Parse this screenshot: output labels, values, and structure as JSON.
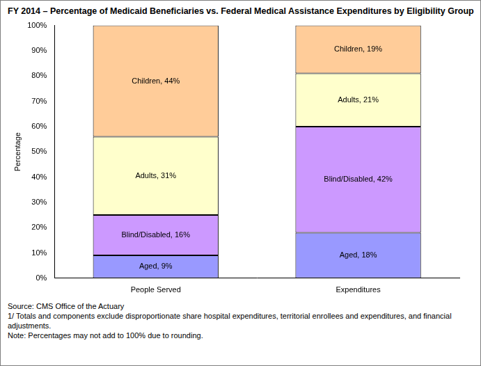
{
  "chart_data": {
    "type": "bar",
    "title": "FY 2014 – Percentage of Medicaid Beneficiaries vs. Federal Medical Assistance Expenditures by Eligibility Group",
    "y_label": "Percentage",
    "categories": [
      "People Served",
      "Expenditures"
    ],
    "stacked": true,
    "data_labels": true,
    "grid": false,
    "series": [
      {
        "name": "Aged",
        "color": "#9999ff",
        "values": [
          9,
          18
        ],
        "value_labels": [
          "Aged, 9%",
          "Aged, 18%"
        ]
      },
      {
        "name": "Blind/Disabled",
        "color": "#cc99ff",
        "values": [
          16,
          42
        ],
        "value_labels": [
          "Blind/Disabled, 16%",
          "Blind/Disabled, 42%"
        ]
      },
      {
        "name": "Adults",
        "color": "#ffffcc",
        "values": [
          31,
          21
        ],
        "value_labels": [
          "Adults, 31%",
          "Adults, 21%"
        ]
      },
      {
        "name": "Children",
        "color": "#ffcc99",
        "values": [
          44,
          19
        ],
        "value_labels": [
          "Children, 44%",
          "Children, 19%"
        ]
      }
    ],
    "ylim": [
      0,
      100
    ],
    "yticks": [
      {
        "value": 0,
        "label": "0%"
      },
      {
        "value": 10,
        "label": "10%"
      },
      {
        "value": 20,
        "label": "20%"
      },
      {
        "value": 30,
        "label": "30%"
      },
      {
        "value": 40,
        "label": "40%"
      },
      {
        "value": 50,
        "label": "50%"
      },
      {
        "value": 60,
        "label": "60%"
      },
      {
        "value": 70,
        "label": "70%"
      },
      {
        "value": 80,
        "label": "80%"
      },
      {
        "value": 90,
        "label": "90%"
      },
      {
        "value": 100,
        "label": "100%"
      }
    ],
    "annotations": [
      "Source: CMS Office of the Actuary",
      "1/ Totals and components exclude disproportionate share hospital expenditures, territorial enrollees and expenditures, and financial adjustments.",
      "Note: Percentages may not add to 100% due to rounding."
    ]
  }
}
